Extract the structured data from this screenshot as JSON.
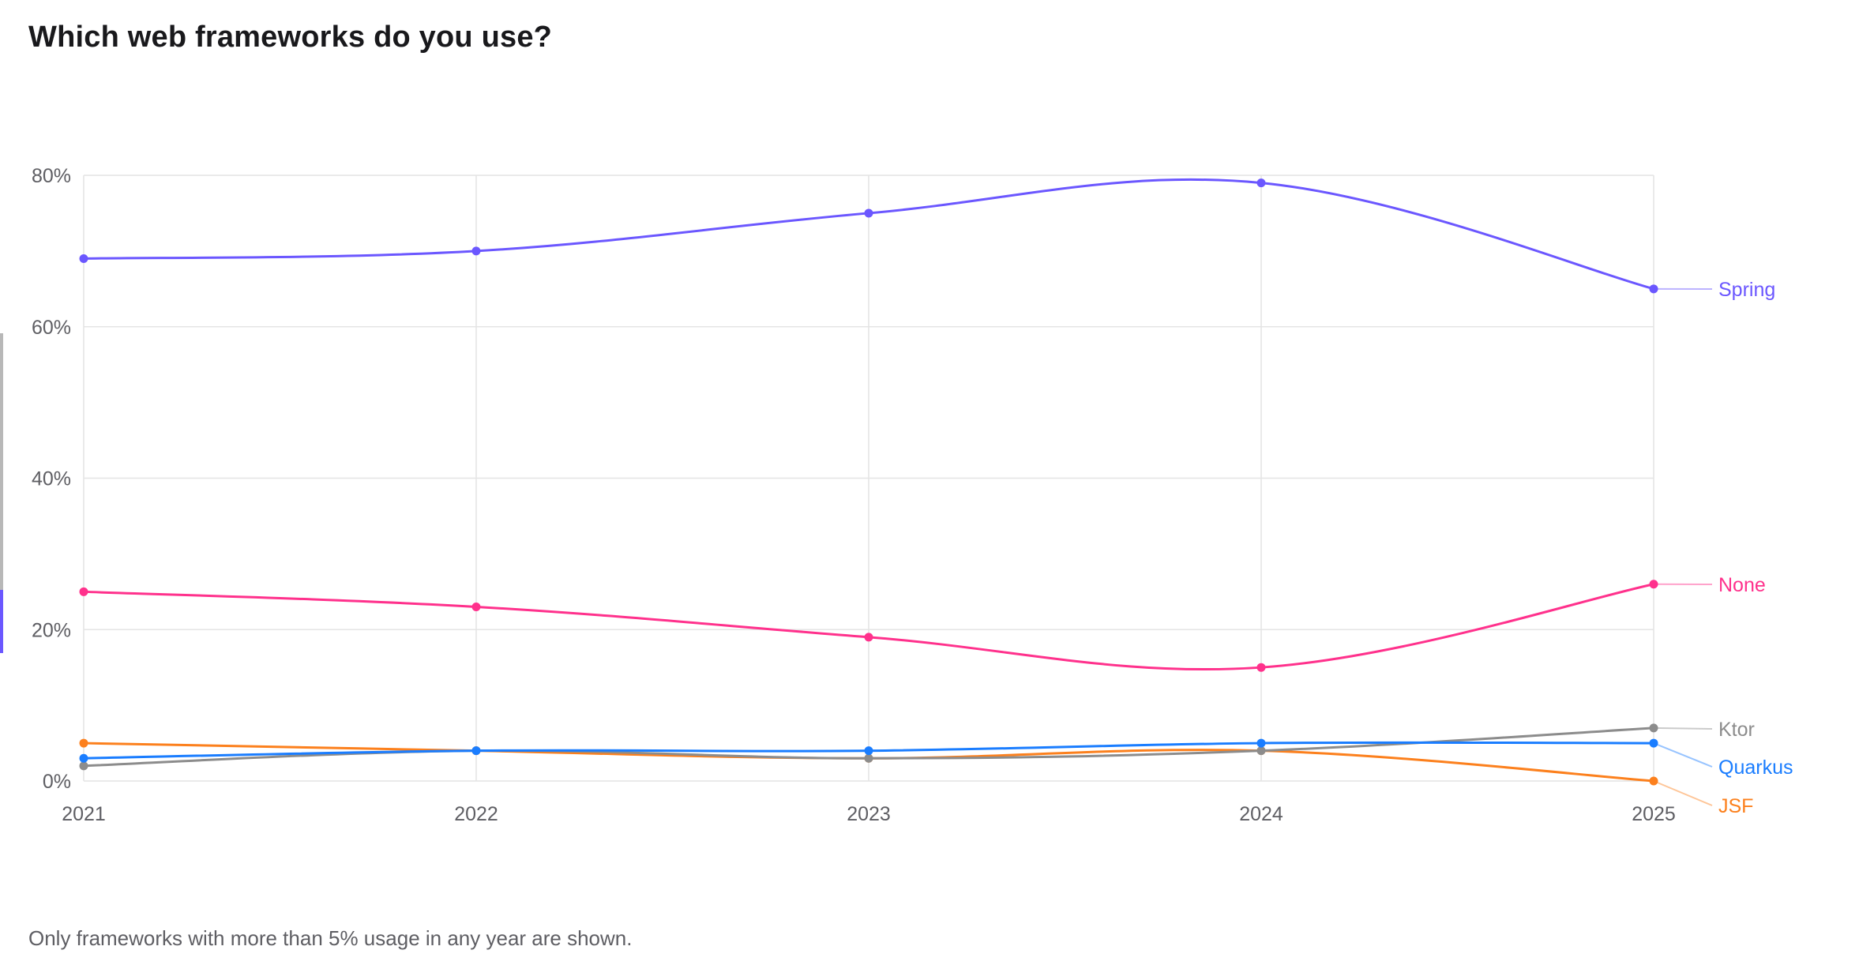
{
  "title": "Which web frameworks do you use?",
  "footnote": "Only frameworks with more than 5% usage in any year are shown.",
  "colors": {
    "Spring": "#6b57ff",
    "None": "#ff318c",
    "Ktor": "#8c8c8c",
    "Quarkus": "#1a7dff",
    "JSF": "#fc801d",
    "grid": "#e4e4e4",
    "axis_text": "#5e5e63"
  },
  "chart_data": {
    "type": "line",
    "title": "Which web frameworks do you use?",
    "xlabel": "",
    "ylabel": "",
    "x": [
      "2021",
      "2022",
      "2023",
      "2024",
      "2025"
    ],
    "ylim": [
      0,
      80
    ],
    "yticks": [
      "0%",
      "20%",
      "40%",
      "60%",
      "80%"
    ],
    "grid": true,
    "legend_position": "inline-right",
    "series": [
      {
        "name": "Spring",
        "values": [
          69,
          70,
          75,
          79,
          65
        ]
      },
      {
        "name": "None",
        "values": [
          25,
          23,
          19,
          15,
          26
        ]
      },
      {
        "name": "Ktor",
        "values": [
          2,
          4,
          3,
          4,
          7
        ]
      },
      {
        "name": "Quarkus",
        "values": [
          3,
          4,
          4,
          5,
          5
        ]
      },
      {
        "name": "JSF",
        "values": [
          5,
          4,
          3,
          4,
          0
        ]
      }
    ],
    "annotation": "Only frameworks with more than 5% usage in any year are shown."
  }
}
